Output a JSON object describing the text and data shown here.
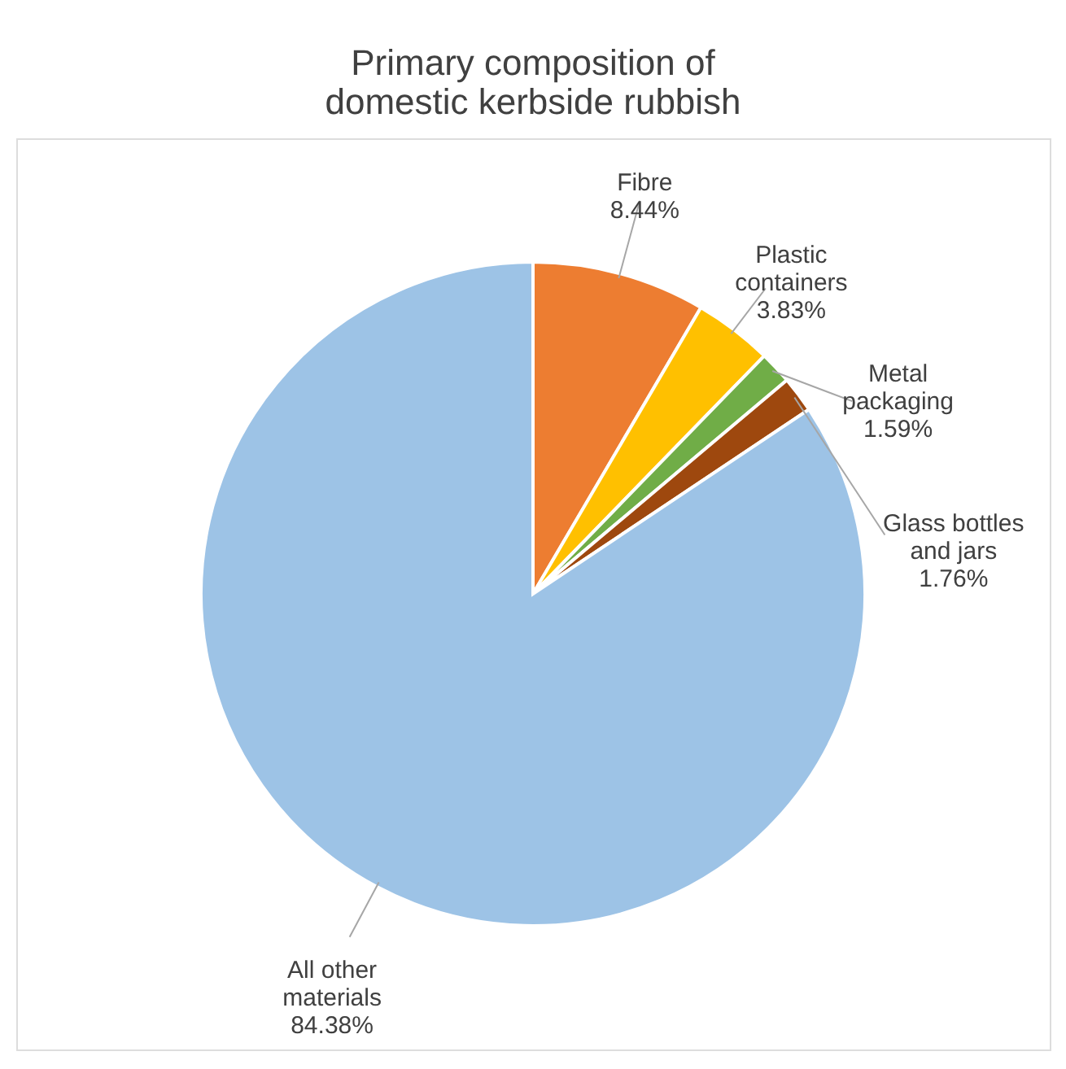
{
  "chart_data": {
    "type": "pie",
    "title": "Primary composition of domestic kerbside rubbish",
    "categories": [
      "Fibre",
      "Plastic containers",
      "Metal packaging",
      "Glass bottles and jars",
      "All other materials"
    ],
    "values": [
      8.44,
      3.83,
      1.59,
      1.76,
      84.38
    ],
    "colors": [
      "#ed7d31",
      "#ffc000",
      "#70ad47",
      "#9e480e",
      "#9dc3e6"
    ],
    "value_labels": [
      "8.44%",
      "3.83%",
      "1.59%",
      "1.76%",
      "84.38%"
    ]
  }
}
